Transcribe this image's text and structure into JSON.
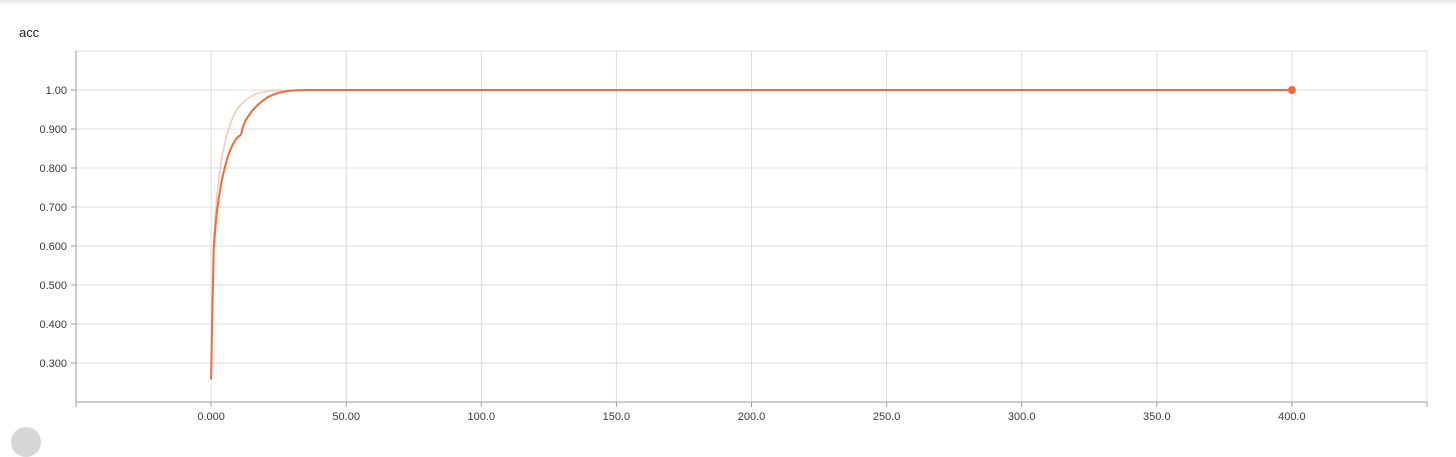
{
  "card": {
    "title": "acc"
  },
  "chart_data": {
    "type": "line",
    "title": "acc",
    "xlabel": "",
    "ylabel": "",
    "xlim": [
      -50,
      450
    ],
    "ylim": [
      0.2,
      1.1
    ],
    "x_ticks": [
      {
        "value": 0,
        "label": "0.000"
      },
      {
        "value": 50,
        "label": "50.00"
      },
      {
        "value": 100,
        "label": "100.0"
      },
      {
        "value": 150,
        "label": "150.0"
      },
      {
        "value": 200,
        "label": "200.0"
      },
      {
        "value": 250,
        "label": "250.0"
      },
      {
        "value": 300,
        "label": "300.0"
      },
      {
        "value": 350,
        "label": "350.0"
      },
      {
        "value": 400,
        "label": "400.0"
      }
    ],
    "y_ticks": [
      {
        "value": 0.3,
        "label": "0.300"
      },
      {
        "value": 0.4,
        "label": "0.400"
      },
      {
        "value": 0.5,
        "label": "0.500"
      },
      {
        "value": 0.6,
        "label": "0.600"
      },
      {
        "value": 0.7,
        "label": "0.700"
      },
      {
        "value": 0.8,
        "label": "0.800"
      },
      {
        "value": 0.9,
        "label": "0.900"
      },
      {
        "value": 1.0,
        "label": "1.00"
      }
    ],
    "grid": true,
    "series": [
      {
        "role": "raw",
        "color": "#f4c7b8",
        "x": [
          0,
          1,
          2,
          3,
          4,
          5,
          6,
          7,
          8,
          10,
          12,
          14,
          16,
          18,
          20,
          22,
          25,
          30,
          35,
          40,
          60,
          100,
          200,
          300,
          400
        ],
        "y": [
          0.26,
          0.62,
          0.72,
          0.78,
          0.83,
          0.86,
          0.89,
          0.91,
          0.93,
          0.955,
          0.97,
          0.98,
          0.988,
          0.993,
          0.996,
          0.998,
          0.999,
          1.0,
          1.0,
          1.0,
          1.0,
          1.0,
          1.0,
          1.0,
          1.0
        ]
      },
      {
        "role": "smoothed",
        "color": "#f26b3a",
        "x": [
          0,
          0.5,
          1,
          2,
          3,
          4,
          5,
          6,
          7,
          8,
          9,
          10,
          11,
          12,
          13,
          14,
          15,
          17,
          19,
          21,
          23,
          25,
          28,
          31,
          35,
          40,
          60,
          100,
          200,
          300,
          400
        ],
        "y": [
          0.26,
          0.45,
          0.6,
          0.68,
          0.73,
          0.77,
          0.8,
          0.825,
          0.845,
          0.86,
          0.872,
          0.88,
          0.885,
          0.91,
          0.925,
          0.935,
          0.945,
          0.96,
          0.972,
          0.982,
          0.988,
          0.993,
          0.997,
          0.999,
          1.0,
          1.0,
          1.0,
          1.0,
          1.0,
          1.0,
          1.0
        ]
      }
    ],
    "last_point": {
      "x": 400,
      "y": 1.0
    }
  }
}
